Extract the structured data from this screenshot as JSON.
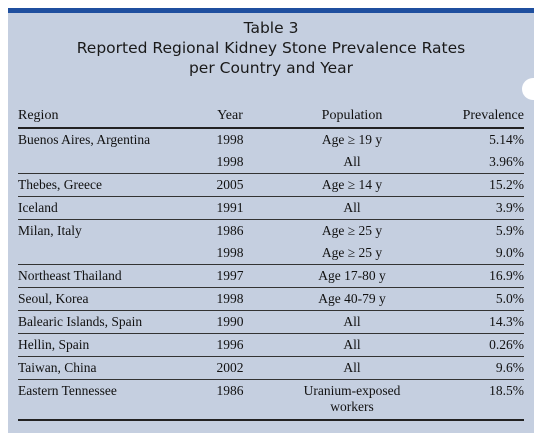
{
  "title": {
    "line1": "Table 3",
    "line2": "Reported Regional Kidney Stone Prevalence Rates",
    "line3": "per Country and Year"
  },
  "columns": [
    "Region",
    "Year",
    "Population",
    "Prevalence"
  ],
  "rows": [
    {
      "region": "Buenos Aires, Argentina",
      "year": "1998",
      "population": "Age ≥ 19 y",
      "prevalence": "5.14%"
    },
    {
      "region": "",
      "year": "1998",
      "population": "All",
      "prevalence": "3.96%"
    },
    {
      "region": "Thebes, Greece",
      "year": "2005",
      "population": "Age ≥ 14 y",
      "prevalence": "15.2%"
    },
    {
      "region": "Iceland",
      "year": "1991",
      "population": "All",
      "prevalence": "3.9%"
    },
    {
      "region": "Milan, Italy",
      "year": "1986",
      "population": "Age ≥ 25 y",
      "prevalence": "5.9%"
    },
    {
      "region": "",
      "year": "1998",
      "population": "Age ≥ 25 y",
      "prevalence": "9.0%"
    },
    {
      "region": "Northeast Thailand",
      "year": "1997",
      "population": "Age 17-80 y",
      "prevalence": "16.9%"
    },
    {
      "region": "Seoul, Korea",
      "year": "1998",
      "population": "Age 40-79 y",
      "prevalence": "5.0%"
    },
    {
      "region": "Balearic Islands, Spain",
      "year": "1990",
      "population": "All",
      "prevalence": "14.3%"
    },
    {
      "region": "Hellin, Spain",
      "year": "1996",
      "population": "All",
      "prevalence": "0.26%"
    },
    {
      "region": "Taiwan, China",
      "year": "2002",
      "population": "All",
      "prevalence": "9.6%"
    },
    {
      "region": "Eastern Tennessee",
      "year": "1986",
      "population_line1": "Uranium-exposed",
      "population_line2": "workers",
      "prevalence": "18.5%"
    }
  ],
  "colors": {
    "panel_background": "#c5cfe0",
    "top_bar": "#1f4f9f",
    "rule": "#222222"
  }
}
